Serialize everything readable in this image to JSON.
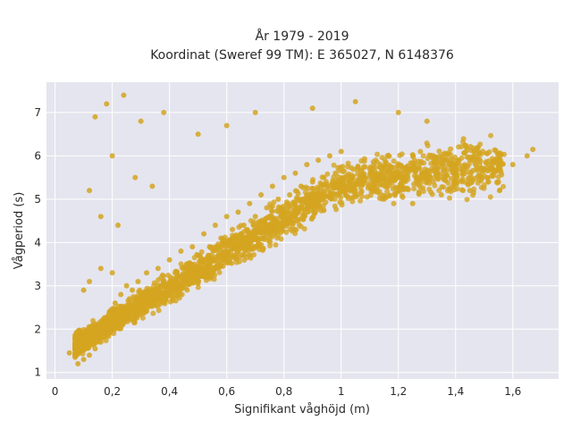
{
  "chart_data": {
    "type": "scatter",
    "title_line1": "År 1979 - 2019",
    "title_line2": "Koordinat (Sweref 99 TM): E 365027, N 6148376",
    "xlabel": "Signifikant våghöjd (m)",
    "ylabel": "Vågperiod (s)",
    "xlim": [
      -0.03,
      1.76
    ],
    "ylim": [
      0.85,
      7.7
    ],
    "x_ticks": [
      0,
      0.2,
      0.4,
      0.6,
      0.8,
      1,
      1.2,
      1.4,
      1.6
    ],
    "x_tick_labels": [
      "0",
      "0,2",
      "0,4",
      "0,6",
      "0,8",
      "1",
      "1,2",
      "1,4",
      "1,6"
    ],
    "y_ticks": [
      1,
      2,
      3,
      4,
      5,
      6,
      7
    ],
    "y_tick_labels": [
      "1",
      "2",
      "3",
      "4",
      "5",
      "6",
      "7"
    ],
    "grid": true,
    "marker_color": "#D4A520",
    "background_color": "#E5E5EF",
    "points": [
      [
        0.05,
        1.45
      ],
      [
        0.07,
        1.35
      ],
      [
        0.08,
        1.2
      ],
      [
        0.09,
        1.5
      ],
      [
        0.1,
        1.3
      ],
      [
        0.11,
        1.6
      ],
      [
        0.12,
        1.4
      ],
      [
        0.13,
        1.8
      ],
      [
        0.14,
        1.55
      ],
      [
        0.15,
        2.0
      ],
      [
        0.16,
        1.7
      ],
      [
        0.17,
        2.2
      ],
      [
        0.18,
        1.9
      ],
      [
        0.19,
        2.4
      ],
      [
        0.2,
        2.1
      ],
      [
        0.21,
        2.6
      ],
      [
        0.22,
        2.3
      ],
      [
        0.23,
        2.8
      ],
      [
        0.24,
        2.5
      ],
      [
        0.25,
        3.0
      ],
      [
        0.26,
        2.7
      ],
      [
        0.27,
        2.9
      ],
      [
        0.28,
        2.6
      ],
      [
        0.29,
        3.1
      ],
      [
        0.3,
        2.8
      ],
      [
        0.32,
        3.3
      ],
      [
        0.34,
        2.9
      ],
      [
        0.36,
        3.4
      ],
      [
        0.38,
        3.1
      ],
      [
        0.4,
        3.6
      ],
      [
        0.42,
        3.3
      ],
      [
        0.44,
        3.8
      ],
      [
        0.46,
        3.5
      ],
      [
        0.48,
        3.9
      ],
      [
        0.5,
        3.7
      ],
      [
        0.52,
        4.2
      ],
      [
        0.54,
        3.9
      ],
      [
        0.56,
        4.4
      ],
      [
        0.58,
        4.1
      ],
      [
        0.6,
        4.6
      ],
      [
        0.62,
        4.3
      ],
      [
        0.64,
        4.7
      ],
      [
        0.66,
        4.4
      ],
      [
        0.68,
        4.9
      ],
      [
        0.7,
        4.6
      ],
      [
        0.72,
        5.1
      ],
      [
        0.74,
        4.8
      ],
      [
        0.76,
        5.3
      ],
      [
        0.78,
        5.0
      ],
      [
        0.8,
        5.5
      ],
      [
        0.82,
        5.1
      ],
      [
        0.84,
        5.6
      ],
      [
        0.86,
        5.3
      ],
      [
        0.88,
        5.8
      ],
      [
        0.9,
        5.4
      ],
      [
        0.92,
        5.9
      ],
      [
        0.94,
        5.5
      ],
      [
        0.96,
        6.0
      ],
      [
        0.98,
        5.6
      ],
      [
        1.0,
        6.1
      ],
      [
        1.05,
        5.2
      ],
      [
        1.1,
        5.7
      ],
      [
        1.15,
        5.0
      ],
      [
        1.2,
        5.5
      ],
      [
        1.25,
        4.9
      ],
      [
        1.3,
        5.4
      ],
      [
        1.35,
        5.1
      ],
      [
        1.4,
        5.6
      ],
      [
        1.45,
        5.2
      ],
      [
        1.5,
        5.7
      ],
      [
        1.55,
        5.4
      ],
      [
        1.6,
        5.8
      ],
      [
        1.65,
        6.0
      ],
      [
        1.67,
        6.15
      ],
      [
        0.12,
        5.2
      ],
      [
        0.14,
        6.9
      ],
      [
        0.18,
        7.2
      ],
      [
        0.2,
        6.0
      ],
      [
        0.24,
        7.4
      ],
      [
        0.3,
        6.8
      ],
      [
        0.38,
        7.0
      ],
      [
        0.5,
        6.5
      ],
      [
        0.6,
        6.7
      ],
      [
        0.7,
        7.0
      ],
      [
        0.9,
        7.1
      ],
      [
        1.05,
        7.25
      ],
      [
        1.2,
        7.0
      ],
      [
        1.3,
        6.8
      ],
      [
        0.16,
        4.6
      ],
      [
        0.22,
        4.4
      ],
      [
        0.28,
        5.5
      ],
      [
        0.34,
        5.3
      ],
      [
        0.1,
        2.9
      ],
      [
        0.12,
        3.1
      ],
      [
        0.16,
        3.4
      ],
      [
        0.2,
        3.3
      ]
    ]
  }
}
